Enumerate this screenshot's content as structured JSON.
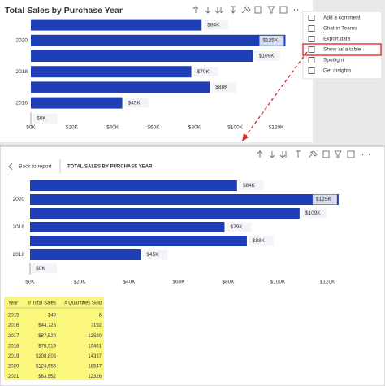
{
  "chart_data": [
    {
      "type": "bar",
      "orientation": "horizontal",
      "title": "Total Sales by Purchase Year",
      "categories": [
        null,
        "2020",
        null,
        "2018",
        null,
        "2016",
        null
      ],
      "values": [
        83552,
        124555,
        108806,
        78519,
        87520,
        44726,
        40
      ],
      "value_labels": [
        "$84K",
        "$125K",
        "$109K",
        "$79K",
        "$88K",
        "$45K",
        "$0K"
      ],
      "color": "#1f3db5",
      "xlim": [
        0,
        130000
      ],
      "xticks": [
        {
          "value": 0,
          "label": "$0K"
        },
        {
          "value": 20000,
          "label": "$20K"
        },
        {
          "value": 40000,
          "label": "$40K"
        },
        {
          "value": 60000,
          "label": "$60K"
        },
        {
          "value": 80000,
          "label": "$80K"
        },
        {
          "value": 100000,
          "label": "$100K"
        },
        {
          "value": 120000,
          "label": "$120K"
        }
      ],
      "grid": false
    },
    {
      "type": "bar",
      "orientation": "horizontal",
      "title": "TOTAL SALES BY PURCHASE YEAR",
      "categories": [
        null,
        "2020",
        null,
        "2018",
        null,
        "2016",
        null
      ],
      "values": [
        83552,
        124555,
        108806,
        78519,
        87520,
        44726,
        40
      ],
      "value_labels": [
        "$84K",
        "$125K",
        "$109K",
        "$79K",
        "$88K",
        "$45K",
        "$0K"
      ],
      "color": "#1f3db5",
      "xlim": [
        0,
        130000
      ],
      "xticks": [
        {
          "value": 0,
          "label": "$0K"
        },
        {
          "value": 20000,
          "label": "$20K"
        },
        {
          "value": 40000,
          "label": "$40K"
        },
        {
          "value": 60000,
          "label": "$60K"
        },
        {
          "value": 80000,
          "label": "$80K"
        },
        {
          "value": 100000,
          "label": "$100K"
        },
        {
          "value": 120000,
          "label": "$120K"
        }
      ],
      "grid": false
    }
  ],
  "menu": [
    "Add a comment",
    "Chat in Teams",
    "Export data",
    "Show as a table",
    "Spotlight",
    "Get insights"
  ],
  "back_link": "Back to report",
  "table": {
    "columns": [
      "Year",
      "# Total Sales",
      "# Quantities Sold"
    ],
    "rows": [
      [
        "2015",
        "$40",
        "8"
      ],
      [
        "2016",
        "$44,726",
        "7192"
      ],
      [
        "2017",
        "$87,520",
        "12580"
      ],
      [
        "2018",
        "$78,519",
        "10461"
      ],
      [
        "2019",
        "$108,806",
        "14337"
      ],
      [
        "2020",
        "$124,555",
        "18547"
      ],
      [
        "2021",
        "$83,552",
        "12326"
      ]
    ]
  }
}
